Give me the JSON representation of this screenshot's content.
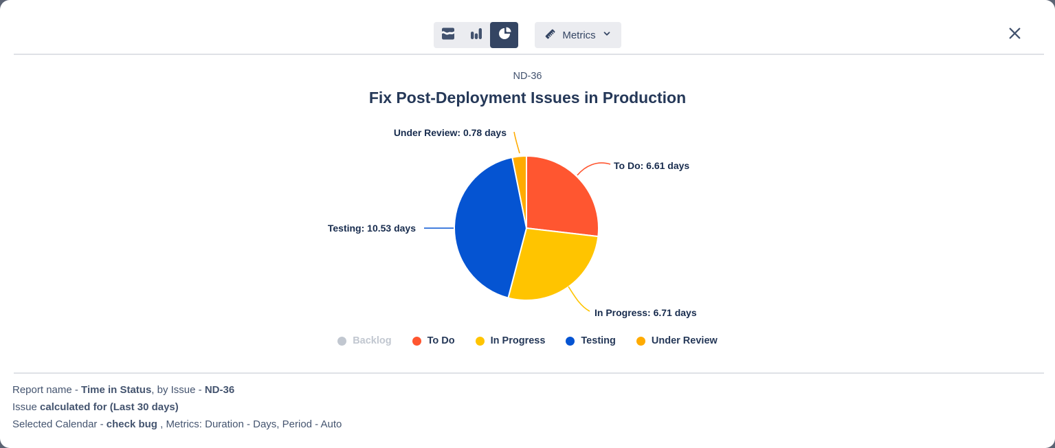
{
  "toolbar": {
    "chart_types": [
      {
        "name": "area-chart",
        "selected": false
      },
      {
        "name": "bar-chart",
        "selected": false
      },
      {
        "name": "pie-chart",
        "selected": true
      }
    ],
    "metrics_button": {
      "label": "Metrics"
    }
  },
  "header": {
    "issue_key": "ND-36",
    "title": "Fix Post-Deployment Issues in Production"
  },
  "chart_data": {
    "type": "pie",
    "title": "Fix Post-Deployment Issues in Production",
    "unit": "days",
    "start_angle_deg": 0,
    "direction": "clockwise",
    "series": [
      {
        "name": "To Do",
        "value": 6.61,
        "color": "#FF5630"
      },
      {
        "name": "In Progress",
        "value": 6.71,
        "color": "#FFC400"
      },
      {
        "name": "Testing",
        "value": 10.53,
        "color": "#0554D2"
      },
      {
        "name": "Under Review",
        "value": 0.78,
        "color": "#FFAB00"
      }
    ],
    "callouts": [
      "To Do: 6.61 days",
      "In Progress: 6.71 days",
      "Testing: 10.53 days",
      "Under Review: 0.78 days"
    ],
    "legend": [
      {
        "name": "Backlog",
        "color": "#C1C7D0",
        "disabled": true
      },
      {
        "name": "To Do",
        "color": "#FF5630",
        "disabled": false
      },
      {
        "name": "In Progress",
        "color": "#FFC400",
        "disabled": false
      },
      {
        "name": "Testing",
        "color": "#0554D2",
        "disabled": false
      },
      {
        "name": "Under Review",
        "color": "#FFAB00",
        "disabled": false
      }
    ],
    "legend_position": "bottom"
  },
  "footer": {
    "lines": [
      [
        {
          "text": "Report name - "
        },
        {
          "text": "Time in Status",
          "bold": true
        },
        {
          "text": ", by Issue - "
        },
        {
          "text": "ND-36",
          "bold": true
        }
      ],
      [
        {
          "text": "Issue "
        },
        {
          "text": "calculated for (Last 30 days)",
          "bold": true
        }
      ],
      [
        {
          "text": "Selected Calendar - "
        },
        {
          "text": "check bug",
          "bold": true
        },
        {
          "text": " , Metrics: Duration - Days, Period - Auto"
        }
      ]
    ]
  },
  "colors": {
    "backdrop": "#5B6373",
    "selected_segment": "#344563",
    "control_bg": "#EBECF0",
    "divider": "#DFE1E6",
    "title": "#253858",
    "footer_text": "#44546F"
  }
}
